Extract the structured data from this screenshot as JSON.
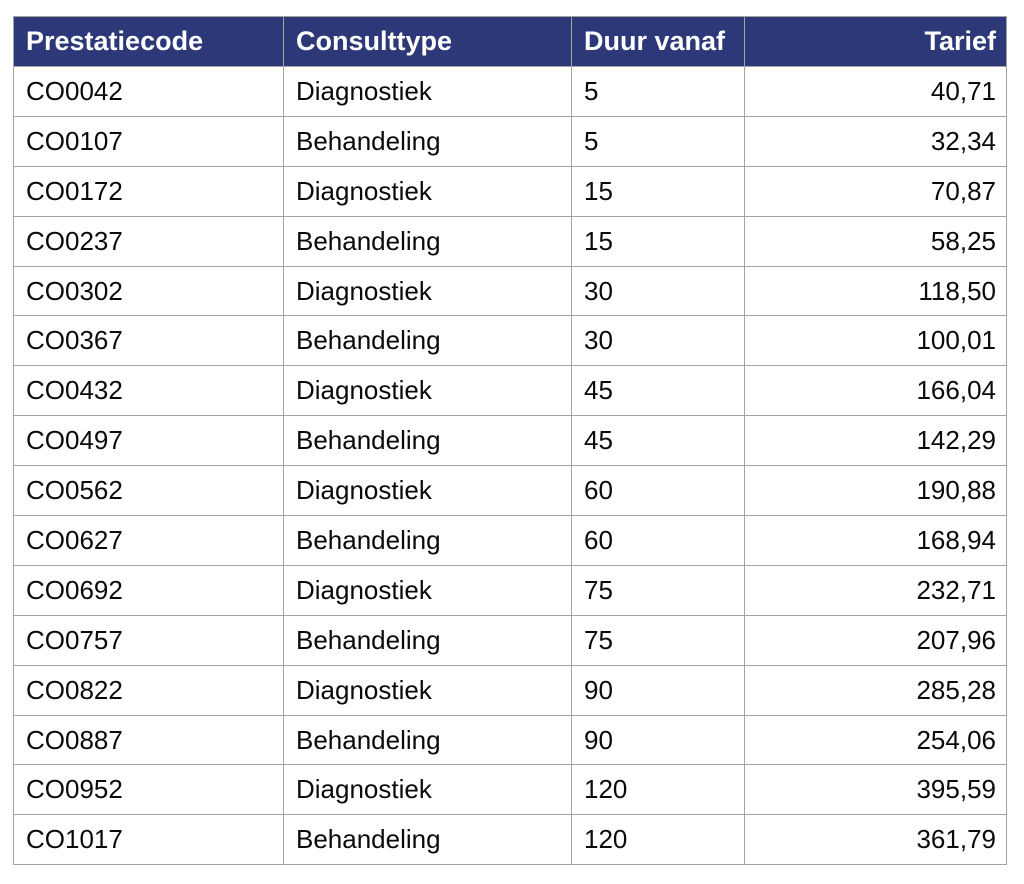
{
  "colors": {
    "header_bg": "#2d3878",
    "header_text": "#ffffff",
    "body_text": "#0a0a0a",
    "grid_line": "#a3a3a3",
    "outer_border": "#858585",
    "page_bg": "#ffffff"
  },
  "table": {
    "columns": [
      {
        "key": "prestatiecode",
        "label": "Prestatiecode",
        "align": "left"
      },
      {
        "key": "consulttype",
        "label": "Consulttype",
        "align": "left"
      },
      {
        "key": "duur-vanaf",
        "label": "Duur vanaf",
        "align": "left"
      },
      {
        "key": "tarief",
        "label": "Tarief",
        "align": "right"
      }
    ],
    "rows": [
      [
        "CO0042",
        "Diagnostiek",
        "5",
        "40,71"
      ],
      [
        "CO0107",
        "Behandeling",
        "5",
        "32,34"
      ],
      [
        "CO0172",
        "Diagnostiek",
        "15",
        "70,87"
      ],
      [
        "CO0237",
        "Behandeling",
        "15",
        "58,25"
      ],
      [
        "CO0302",
        "Diagnostiek",
        "30",
        "118,50"
      ],
      [
        "CO0367",
        "Behandeling",
        "30",
        "100,01"
      ],
      [
        "CO0432",
        "Diagnostiek",
        "45",
        "166,04"
      ],
      [
        "CO0497",
        "Behandeling",
        "45",
        "142,29"
      ],
      [
        "CO0562",
        "Diagnostiek",
        "60",
        "190,88"
      ],
      [
        "CO0627",
        "Behandeling",
        "60",
        "168,94"
      ],
      [
        "CO0692",
        "Diagnostiek",
        "75",
        "232,71"
      ],
      [
        "CO0757",
        "Behandeling",
        "75",
        "207,96"
      ],
      [
        "CO0822",
        "Diagnostiek",
        "90",
        "285,28"
      ],
      [
        "CO0887",
        "Behandeling",
        "90",
        "254,06"
      ],
      [
        "CO0952",
        "Diagnostiek",
        "120",
        "395,59"
      ],
      [
        "CO1017",
        "Behandeling",
        "120",
        "361,79"
      ]
    ]
  }
}
